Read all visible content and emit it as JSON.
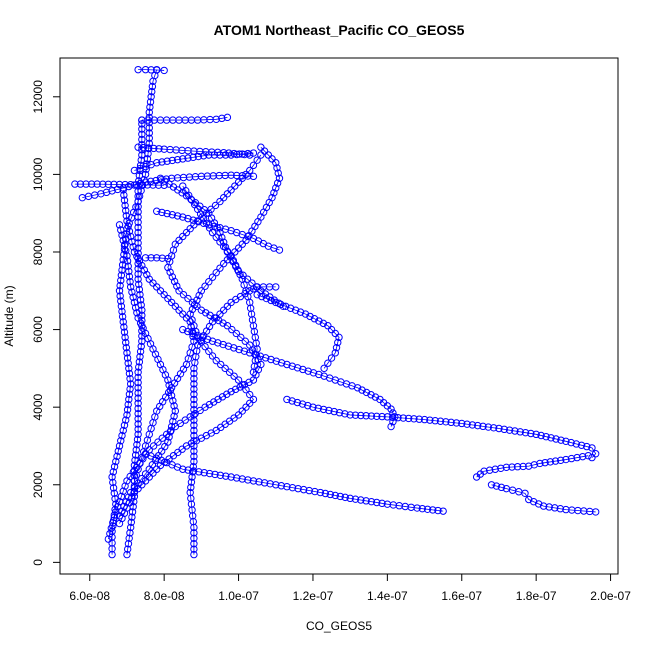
{
  "chart_data": {
    "type": "scatter",
    "title": "ATOM1 Northeast_Pacific CO_GEOS5",
    "xlabel": "CO_GEOS5",
    "ylabel": "Altitude (m)",
    "xlim": [
      5.2e-08,
      2.02e-07
    ],
    "ylim": [
      -300,
      13000
    ],
    "x_ticks": [
      6e-08,
      8e-08,
      1e-07,
      1.2e-07,
      1.4e-07,
      1.6e-07,
      1.8e-07,
      2e-07
    ],
    "x_tick_labels": [
      "6.0e-08",
      "8.0e-08",
      "1.0e-07",
      "1.2e-07",
      "1.4e-07",
      "1.6e-07",
      "1.8e-07",
      "2.0e-07"
    ],
    "y_ticks": [
      0,
      2000,
      4000,
      6000,
      8000,
      10000,
      12000
    ],
    "y_tick_labels": [
      "0",
      "2000",
      "4000",
      "6000",
      "8000",
      "10000",
      "12000"
    ],
    "grid": false,
    "legend": "none",
    "marker": "open-circle",
    "color": "#0000ff",
    "series": [
      {
        "points": [
          [
            6.6e-08,
            200
          ],
          [
            6.6e-08,
            800
          ],
          [
            6.7e-08,
            1500
          ],
          [
            6.6e-08,
            2200
          ],
          [
            6.8e-08,
            3000
          ],
          [
            7e-08,
            3800
          ],
          [
            7.1e-08,
            4600
          ],
          [
            7e-08,
            5400
          ],
          [
            6.9e-08,
            6200
          ],
          [
            6.8e-08,
            7000
          ],
          [
            6.9e-08,
            7800
          ],
          [
            7e-08,
            8600
          ],
          [
            7.3e-08,
            9300
          ],
          [
            7.5e-08,
            10000
          ],
          [
            7.6e-08,
            10800
          ],
          [
            7.6e-08,
            11600
          ],
          [
            7.7e-08,
            12400
          ],
          [
            7.8e-08,
            12700
          ]
        ]
      },
      {
        "points": [
          [
            7e-08,
            200
          ],
          [
            7.1e-08,
            900
          ],
          [
            7.2e-08,
            1700
          ],
          [
            7.2e-08,
            2500
          ],
          [
            7.3e-08,
            3300
          ],
          [
            7.3e-08,
            4100
          ],
          [
            7.3e-08,
            4900
          ],
          [
            7.4e-08,
            5700
          ],
          [
            7.4e-08,
            6500
          ],
          [
            7.3e-08,
            7300
          ],
          [
            7.3e-08,
            8100
          ],
          [
            7.3e-08,
            8900
          ],
          [
            7.3e-08,
            9700
          ],
          [
            7.4e-08,
            10500
          ],
          [
            7.4e-08,
            11300
          ],
          [
            7.4e-08,
            11400
          ]
        ]
      },
      {
        "points": [
          [
            8.8e-08,
            200
          ],
          [
            8.8e-08,
            900
          ],
          [
            8.7e-08,
            1800
          ],
          [
            8.8e-08,
            2600
          ],
          [
            8.8e-08,
            3400
          ],
          [
            8.8e-08,
            4200
          ],
          [
            8.8e-08,
            5000
          ],
          [
            8.9e-08,
            5600
          ],
          [
            9.3e-08,
            6200
          ],
          [
            9.8e-08,
            6700
          ],
          [
            1.03e-07,
            7000
          ],
          [
            1.05e-07,
            7100
          ],
          [
            1.1e-07,
            7100
          ]
        ]
      },
      {
        "points": [
          [
            6.5e-08,
            600
          ],
          [
            6.7e-08,
            1300
          ],
          [
            7e-08,
            2100
          ],
          [
            7.6e-08,
            2900
          ],
          [
            8.3e-08,
            3500
          ],
          [
            9.1e-08,
            4000
          ],
          [
            9.8e-08,
            4400
          ],
          [
            1.04e-07,
            4700
          ],
          [
            1.06e-07,
            5100
          ],
          [
            1.03e-07,
            5600
          ],
          [
            9.7e-08,
            6100
          ],
          [
            9e-08,
            6500
          ],
          [
            8.4e-08,
            7000
          ],
          [
            8.1e-08,
            7600
          ],
          [
            8.3e-08,
            8200
          ],
          [
            8.9e-08,
            8800
          ],
          [
            9.5e-08,
            9300
          ],
          [
            9.9e-08,
            9700
          ],
          [
            1.03e-07,
            10100
          ],
          [
            1.06e-07,
            10500
          ]
        ]
      },
      {
        "points": [
          [
            6.8e-08,
            1000
          ],
          [
            7.2e-08,
            1800
          ],
          [
            7.9e-08,
            2500
          ],
          [
            8.6e-08,
            3000
          ],
          [
            9.4e-08,
            3400
          ],
          [
            1e-07,
            3800
          ],
          [
            1.04e-07,
            4200
          ],
          [
            1e-07,
            4700
          ],
          [
            9.4e-08,
            5200
          ],
          [
            8.9e-08,
            5800
          ],
          [
            8.7e-08,
            6400
          ],
          [
            9e-08,
            7000
          ],
          [
            9.6e-08,
            7700
          ],
          [
            1.02e-07,
            8300
          ],
          [
            1.06e-07,
            8900
          ],
          [
            1.09e-07,
            9400
          ],
          [
            1.11e-07,
            9900
          ],
          [
            1.1e-07,
            10300
          ],
          [
            1.06e-07,
            10700
          ]
        ]
      },
      {
        "points": [
          [
            7.5e-08,
            2800
          ],
          [
            8.5e-08,
            2400
          ],
          [
            9.8e-08,
            2200
          ],
          [
            1.1e-07,
            2000
          ],
          [
            1.22e-07,
            1800
          ],
          [
            1.3e-07,
            1650
          ],
          [
            1.4e-07,
            1500
          ],
          [
            1.48e-07,
            1400
          ],
          [
            1.55e-07,
            1320
          ]
        ]
      },
      {
        "points": [
          [
            1.13e-07,
            4200
          ],
          [
            1.2e-07,
            4000
          ],
          [
            1.3e-07,
            3800
          ],
          [
            1.4e-07,
            3750
          ],
          [
            1.5e-07,
            3680
          ],
          [
            1.6e-07,
            3580
          ],
          [
            1.7e-07,
            3450
          ],
          [
            1.8e-07,
            3300
          ],
          [
            1.88e-07,
            3120
          ],
          [
            1.95e-07,
            2950
          ],
          [
            1.96e-07,
            2800
          ],
          [
            1.95e-07,
            2700
          ]
        ]
      },
      {
        "points": [
          [
            1.64e-07,
            2200
          ],
          [
            1.66e-07,
            2350
          ],
          [
            1.72e-07,
            2450
          ],
          [
            1.78e-07,
            2480
          ],
          [
            1.81e-07,
            2550
          ],
          [
            1.88e-07,
            2650
          ],
          [
            1.94e-07,
            2750
          ]
        ]
      },
      {
        "points": [
          [
            1.68e-07,
            2000
          ],
          [
            1.72e-07,
            1900
          ],
          [
            1.77e-07,
            1780
          ],
          [
            1.78e-07,
            1620
          ],
          [
            1.82e-07,
            1450
          ],
          [
            1.88e-07,
            1360
          ],
          [
            1.96e-07,
            1300
          ]
        ]
      },
      {
        "points": [
          [
            1.05e-07,
            6900
          ],
          [
            1.1e-07,
            6700
          ],
          [
            1.18e-07,
            6400
          ],
          [
            1.24e-07,
            6100
          ],
          [
            1.27e-07,
            5800
          ],
          [
            1.26e-07,
            5400
          ],
          [
            1.23e-07,
            5000
          ]
        ]
      },
      {
        "points": [
          [
            8.5e-08,
            6000
          ],
          [
            9.3e-08,
            5700
          ],
          [
            1.03e-07,
            5400
          ],
          [
            1.13e-07,
            5100
          ],
          [
            1.23e-07,
            4800
          ],
          [
            1.32e-07,
            4500
          ],
          [
            1.38e-07,
            4200
          ],
          [
            1.41e-07,
            3950
          ],
          [
            1.42e-07,
            3750
          ],
          [
            1.41e-07,
            3500
          ]
        ]
      },
      {
        "points": [
          [
            7.8e-08,
            9050
          ],
          [
            8.5e-08,
            8900
          ],
          [
            9.2e-08,
            8700
          ],
          [
            9.8e-08,
            8550
          ],
          [
            1.04e-07,
            8350
          ],
          [
            1.08e-07,
            8150
          ],
          [
            1.11e-07,
            8050
          ]
        ]
      },
      {
        "points": [
          [
            6.8e-08,
            8700
          ],
          [
            7e-08,
            7900
          ],
          [
            7.1e-08,
            7100
          ],
          [
            7.3e-08,
            6300
          ],
          [
            7.7e-08,
            5500
          ],
          [
            8.1e-08,
            4700
          ],
          [
            8.3e-08,
            3900
          ],
          [
            8.1e-08,
            3100
          ],
          [
            7.6e-08,
            2400
          ],
          [
            7.1e-08,
            1800
          ],
          [
            6.8e-08,
            1200
          ]
        ]
      },
      {
        "points": [
          [
            8.5e-08,
            9700
          ],
          [
            8.9e-08,
            9100
          ],
          [
            9.3e-08,
            8500
          ],
          [
            9.8e-08,
            7900
          ],
          [
            1.01e-07,
            7300
          ],
          [
            1.03e-07,
            6700
          ],
          [
            1.04e-07,
            6100
          ],
          [
            1.05e-07,
            5500
          ],
          [
            1.04e-07,
            4900
          ]
        ]
      },
      {
        "points": [
          [
            5.6e-08,
            9750
          ],
          [
            6.2e-08,
            9750
          ],
          [
            6.8e-08,
            9740
          ],
          [
            7.4e-08,
            9730
          ],
          [
            8e-08,
            9720
          ]
        ]
      },
      {
        "points": [
          [
            5.8e-08,
            9400
          ],
          [
            6.3e-08,
            9500
          ],
          [
            6.9e-08,
            9650
          ],
          [
            7.5e-08,
            9800
          ],
          [
            8.2e-08,
            9900
          ],
          [
            9e-08,
            9950
          ],
          [
            9.8e-08,
            9980
          ],
          [
            1.04e-07,
            9950
          ]
        ]
      },
      {
        "points": [
          [
            7.2e-08,
            10100
          ],
          [
            7.8e-08,
            10300
          ],
          [
            8.5e-08,
            10400
          ],
          [
            9.2e-08,
            10500
          ],
          [
            9.8e-08,
            10500
          ],
          [
            1.04e-07,
            10550
          ]
        ]
      },
      {
        "points": [
          [
            7.3e-08,
            10700
          ],
          [
            8e-08,
            10650
          ],
          [
            8.8e-08,
            10600
          ],
          [
            9.6e-08,
            10560
          ],
          [
            1.03e-07,
            10500
          ]
        ]
      },
      {
        "points": [
          [
            7.4e-08,
            11400
          ],
          [
            7.9e-08,
            11400
          ],
          [
            8.4e-08,
            11400
          ],
          [
            8.9e-08,
            11400
          ],
          [
            9.4e-08,
            11420
          ],
          [
            9.7e-08,
            11470
          ]
        ]
      },
      {
        "points": [
          [
            7.3e-08,
            12700
          ],
          [
            7.5e-08,
            12700
          ],
          [
            7.8e-08,
            12690
          ],
          [
            8e-08,
            12680
          ]
        ]
      },
      {
        "points": [
          [
            7.5e-08,
            7850
          ],
          [
            7.8e-08,
            7850
          ],
          [
            8.1e-08,
            7830
          ]
        ]
      },
      {
        "points": [
          [
            6.9e-08,
            9600
          ],
          [
            7e-08,
            8800
          ],
          [
            7.2e-08,
            8000
          ],
          [
            7.6e-08,
            7300
          ],
          [
            8.2e-08,
            6700
          ],
          [
            8.7e-08,
            6200
          ],
          [
            8.8e-08,
            5700
          ],
          [
            8.6e-08,
            5100
          ],
          [
            8.2e-08,
            4500
          ],
          [
            7.8e-08,
            3900
          ],
          [
            7.6e-08,
            3300
          ],
          [
            7.4e-08,
            2700
          ],
          [
            7.2e-08,
            2100
          ]
        ]
      },
      {
        "points": [
          [
            7.9e-08,
            9900
          ],
          [
            8.6e-08,
            9450
          ],
          [
            9.2e-08,
            9000
          ],
          [
            9.5e-08,
            8500
          ],
          [
            9.7e-08,
            8000
          ],
          [
            1e-07,
            7500
          ],
          [
            1.06e-07,
            7000
          ],
          [
            1.12e-07,
            6600
          ]
        ]
      }
    ]
  }
}
